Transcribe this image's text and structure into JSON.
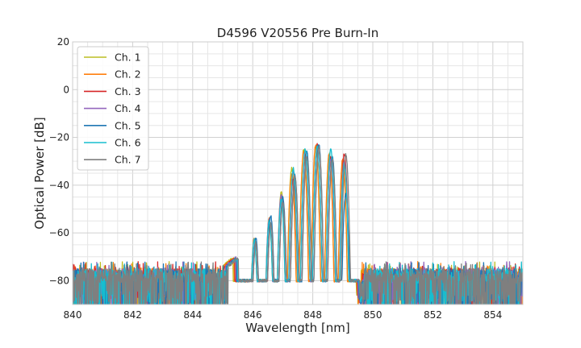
{
  "chart_data": {
    "type": "line",
    "title": "D4596 V20556 Pre Burn-In",
    "xlabel": "Wavelength [nm]",
    "ylabel": "Optical Power [dB]",
    "xlim": [
      840,
      855
    ],
    "ylim": [
      -90,
      20
    ],
    "xticks": [
      "840",
      "842",
      "844",
      "846",
      "848",
      "850",
      "852",
      "854"
    ],
    "yticks": [
      "20",
      "0",
      "−20",
      "−40",
      "−60",
      "−80"
    ],
    "grid": true,
    "legend_position": "top-left",
    "noise_floor_db": -78,
    "series": [
      {
        "name": "Ch. 1",
        "color": "#bcbd22",
        "peaks": [
          [
            846.05,
            -63
          ],
          [
            846.55,
            -55
          ],
          [
            846.95,
            -43
          ],
          [
            847.3,
            -33
          ],
          [
            847.7,
            -25
          ],
          [
            848.1,
            -24
          ],
          [
            848.55,
            -27
          ],
          [
            849.0,
            -30
          ]
        ]
      },
      {
        "name": "Ch. 2",
        "color": "#ff7f0e",
        "peaks": [
          [
            846.05,
            -62
          ],
          [
            846.55,
            -54
          ],
          [
            846.95,
            -45
          ],
          [
            847.3,
            -35
          ],
          [
            847.7,
            -26
          ],
          [
            848.1,
            -23
          ],
          [
            848.55,
            -27
          ],
          [
            849.0,
            -29
          ]
        ]
      },
      {
        "name": "Ch. 3",
        "color": "#d62728",
        "peaks": [
          [
            846.1,
            -64
          ],
          [
            846.6,
            -56
          ],
          [
            847.0,
            -47
          ],
          [
            847.35,
            -37
          ],
          [
            847.75,
            -27
          ],
          [
            848.15,
            -23
          ],
          [
            848.6,
            -28
          ],
          [
            849.05,
            -27
          ]
        ]
      },
      {
        "name": "Ch. 4",
        "color": "#9467bd",
        "peaks": [
          [
            846.05,
            -63
          ],
          [
            846.55,
            -54
          ],
          [
            846.95,
            -44
          ],
          [
            847.35,
            -34
          ],
          [
            847.75,
            -26
          ],
          [
            848.15,
            -24
          ],
          [
            848.6,
            -29
          ],
          [
            849.05,
            -30
          ]
        ]
      },
      {
        "name": "Ch. 5",
        "color": "#1f77b4",
        "peaks": [
          [
            846.1,
            -62
          ],
          [
            846.6,
            -53
          ],
          [
            847.0,
            -45
          ],
          [
            847.4,
            -36
          ],
          [
            847.8,
            -26
          ],
          [
            848.2,
            -23
          ],
          [
            848.65,
            -28
          ],
          [
            849.1,
            -44
          ]
        ]
      },
      {
        "name": "Ch. 6",
        "color": "#17becf",
        "peaks": [
          [
            846.05,
            -63
          ],
          [
            846.55,
            -55
          ],
          [
            846.95,
            -46
          ],
          [
            847.35,
            -33
          ],
          [
            847.75,
            -25
          ],
          [
            848.15,
            -24
          ],
          [
            848.6,
            -25
          ],
          [
            849.05,
            -31
          ]
        ]
      },
      {
        "name": "Ch. 7",
        "color": "#7f7f7f",
        "peaks": [
          [
            846.1,
            -64
          ],
          [
            846.6,
            -56
          ],
          [
            847.0,
            -47
          ],
          [
            847.4,
            -36
          ],
          [
            847.8,
            -28
          ],
          [
            848.2,
            -24
          ],
          [
            848.65,
            -29
          ],
          [
            849.1,
            -27
          ]
        ]
      }
    ]
  }
}
